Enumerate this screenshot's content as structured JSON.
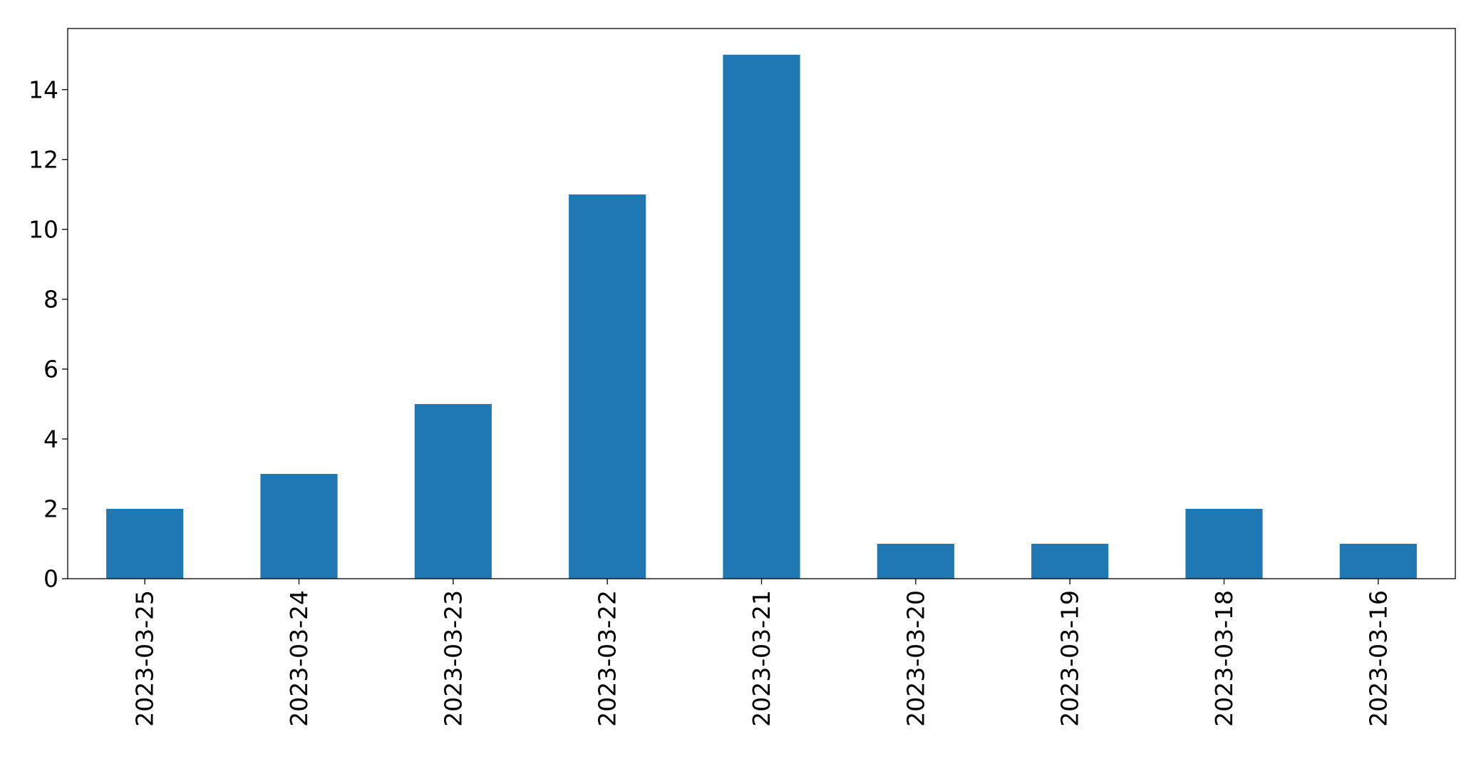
{
  "chart_data": {
    "type": "bar",
    "categories": [
      "2023-03-25",
      "2023-03-24",
      "2023-03-23",
      "2023-03-22",
      "2023-03-21",
      "2023-03-20",
      "2023-03-19",
      "2023-03-18",
      "2023-03-16"
    ],
    "values": [
      2,
      3,
      5,
      11,
      15,
      1,
      1,
      2,
      1
    ],
    "title": "",
    "xlabel": "",
    "ylabel": "",
    "ylim": [
      0,
      15.75
    ],
    "yticks": [
      0,
      2,
      4,
      6,
      8,
      10,
      12,
      14
    ],
    "xtick_rotation": "vertical",
    "grid": false,
    "legend": "none",
    "colors": {
      "bar": "#1f77b4",
      "axis": "#000000",
      "background": "#ffffff"
    }
  }
}
